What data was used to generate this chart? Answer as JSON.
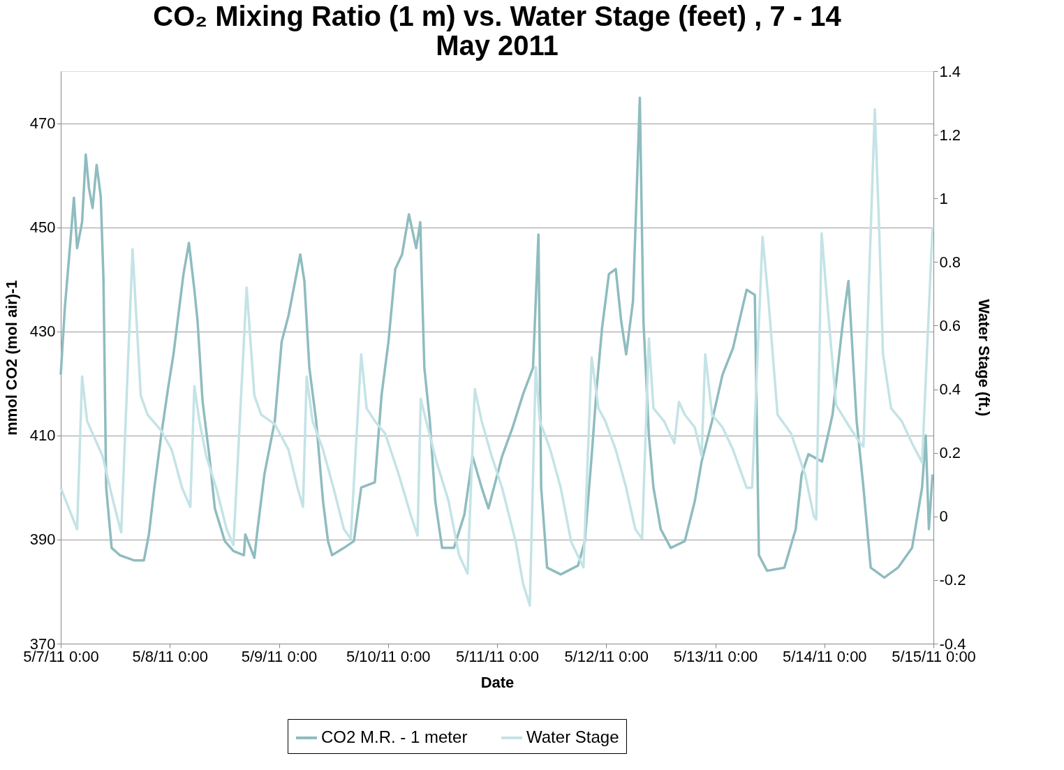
{
  "chart_data": {
    "type": "line",
    "title": "CO₂ Mixing Ratio (1 m) vs. Water Stage (feet) , 7 - 14 May 2011",
    "xlabel": "Date",
    "ylabel": "mmol CO2 (mol air)-1",
    "y2label": "Water Stage (ft.)",
    "xlim": [
      "2011-05-07T00:00",
      "2011-05-15T00:00"
    ],
    "xticks": [
      {
        "value": "2011-05-07T00:00",
        "label": "5/7/11 0:00"
      },
      {
        "value": "2011-05-08T00:00",
        "label": "5/8/11 0:00"
      },
      {
        "value": "2011-05-09T00:00",
        "label": "5/9/11 0:00"
      },
      {
        "value": "2011-05-10T00:00",
        "label": "5/10/11 0:00"
      },
      {
        "value": "2011-05-11T00:00",
        "label": "5/11/11 0:00"
      },
      {
        "value": "2011-05-12T00:00",
        "label": "5/12/11 0:00"
      },
      {
        "value": "2011-05-13T00:00",
        "label": "5/13/11 0:00"
      },
      {
        "value": "2011-05-14T00:00",
        "label": "5/14/11 0:00"
      },
      {
        "value": "2011-05-15T00:00",
        "label": "5/15/11 0:00"
      }
    ],
    "ylim": [
      370,
      480
    ],
    "yticks": [
      370,
      390,
      410,
      430,
      450,
      470
    ],
    "y2lim": [
      -0.4,
      1.4
    ],
    "y2ticks": [
      -0.4,
      -0.2,
      0,
      0.2,
      0.4,
      0.6,
      0.8,
      1,
      1.2,
      1.4
    ],
    "grid": "y",
    "legend": "bottom",
    "marker": "none",
    "line_style": "solid",
    "series": [
      {
        "name": "CO2 M.R. - 1 meter",
        "color": "#8fbcbf",
        "x": [
          "2011-05-07T00:00",
          "2011-05-07T00:54",
          "2011-05-07T02:06",
          "2011-05-07T02:54",
          "2011-05-07T03:36",
          "2011-05-07T04:42",
          "2011-05-07T05:30",
          "2011-05-07T06:12",
          "2011-05-07T07:00",
          "2011-05-07T07:54",
          "2011-05-07T08:48",
          "2011-05-07T09:24",
          "2011-05-07T10:00",
          "2011-05-07T11:12",
          "2011-05-07T13:00",
          "2011-05-07T16:06",
          "2011-05-07T18:18",
          "2011-05-07T19:24",
          "2011-05-07T20:36",
          "2011-05-07T22:06",
          "2011-05-07T23:36",
          "2011-05-08T00:48",
          "2011-05-08T03:00",
          "2011-05-08T04:12",
          "2011-05-08T05:24",
          "2011-05-08T06:06",
          "2011-05-08T07:12",
          "2011-05-08T08:42",
          "2011-05-08T09:54",
          "2011-05-08T12:06",
          "2011-05-08T14:00",
          "2011-05-08T16:18",
          "2011-05-08T16:36",
          "2011-05-08T18:36",
          "2011-05-08T19:18",
          "2011-05-08T20:48",
          "2011-05-08T23:06",
          "2011-05-09T00:36",
          "2011-05-09T02:06",
          "2011-05-09T04:42",
          "2011-05-09T05:36",
          "2011-05-09T06:42",
          "2011-05-09T08:12",
          "2011-05-09T09:42",
          "2011-05-09T10:48",
          "2011-05-09T11:42",
          "2011-05-09T14:18",
          "2011-05-09T16:30",
          "2011-05-09T18:06",
          "2011-05-09T21:06",
          "2011-05-09T22:36",
          "2011-05-10T00:06",
          "2011-05-10T01:36",
          "2011-05-10T03:06",
          "2011-05-10T04:36",
          "2011-05-10T06:12",
          "2011-05-10T07:06",
          "2011-05-10T07:24",
          "2011-05-10T08:00",
          "2011-05-10T09:12",
          "2011-05-10T10:24",
          "2011-05-10T11:54",
          "2011-05-10T14:30",
          "2011-05-10T16:48",
          "2011-05-10T18:36",
          "2011-05-10T20:36",
          "2011-05-10T22:06",
          "2011-05-10T23:36",
          "2011-05-11T01:06",
          "2011-05-11T03:24",
          "2011-05-11T05:42",
          "2011-05-11T07:54",
          "2011-05-11T09:06",
          "2011-05-11T09:42",
          "2011-05-11T11:00",
          "2011-05-11T14:00",
          "2011-05-11T17:48",
          "2011-05-11T19:18",
          "2011-05-11T20:48",
          "2011-05-11T21:54",
          "2011-05-11T23:06",
          "2011-05-12T00:36",
          "2011-05-12T02:06",
          "2011-05-12T03:18",
          "2011-05-12T04:24",
          "2011-05-12T05:54",
          "2011-05-12T07:24",
          "2011-05-12T08:12",
          "2011-05-12T09:24",
          "2011-05-12T10:24",
          "2011-05-12T12:00",
          "2011-05-12T14:12",
          "2011-05-12T17:18",
          "2011-05-12T19:30",
          "2011-05-12T21:00",
          "2011-05-12T23:18",
          "2011-05-13T01:36",
          "2011-05-13T03:54",
          "2011-05-13T06:54",
          "2011-05-13T08:42",
          "2011-05-13T09:36",
          "2011-05-13T11:24",
          "2011-05-13T15:12",
          "2011-05-13T17:42",
          "2011-05-13T19:00",
          "2011-05-13T20:30",
          "2011-05-13T23:30",
          "2011-05-14T01:48",
          "2011-05-14T04:06",
          "2011-05-14T05:18",
          "2011-05-14T07:06",
          "2011-05-14T08:36",
          "2011-05-14T10:12",
          "2011-05-14T13:12",
          "2011-05-14T16:12",
          "2011-05-14T19:18",
          "2011-05-14T21:30",
          "2011-05-14T22:18",
          "2011-05-14T23:00",
          "2011-05-14T23:48"
        ],
        "values": [
          421.7,
          434.5,
          447,
          455.7,
          446,
          451,
          464,
          457.6,
          453.7,
          462,
          456,
          440,
          400,
          388.4,
          387,
          386,
          386,
          391,
          400,
          410,
          419,
          425.6,
          441,
          447,
          438,
          432,
          416.6,
          406,
          396,
          389.7,
          387.8,
          387,
          391,
          386.5,
          392,
          402.5,
          412.8,
          428,
          433,
          444.8,
          439.7,
          423,
          412.8,
          397.4,
          389.7,
          387,
          388.4,
          389.7,
          400,
          401,
          417.9,
          428,
          442,
          444.8,
          452.5,
          446,
          451,
          441,
          423,
          412.8,
          397.4,
          388.4,
          388.4,
          394.8,
          406,
          400,
          396,
          401,
          406,
          411.5,
          417.9,
          423,
          448.6,
          400,
          384.6,
          383.3,
          385,
          389.7,
          406,
          419,
          430.7,
          441,
          442,
          432,
          425.6,
          435.8,
          474.9,
          432,
          410,
          400,
          392,
          388.4,
          389.7,
          397.4,
          405,
          412.8,
          421.7,
          426.8,
          438,
          437,
          387,
          384,
          384.6,
          392,
          402.5,
          406.4,
          405,
          414,
          432,
          439.7,
          412.8,
          400,
          384.6,
          382.7,
          384.6,
          388.4,
          400,
          410,
          392,
          402.5
        ]
      },
      {
        "name": "Water Stage",
        "color": "#c4e3e6",
        "axis": "y2",
        "x": [
          "2011-05-07T00:00",
          "2011-05-07T03:36",
          "2011-05-07T04:42",
          "2011-05-07T05:48",
          "2011-05-07T09:12",
          "2011-05-07T11:30",
          "2011-05-07T13:18",
          "2011-05-07T15:48",
          "2011-05-07T17:36",
          "2011-05-07T19:06",
          "2011-05-07T22:06",
          "2011-05-08T00:24",
          "2011-05-08T02:42",
          "2011-05-08T04:30",
          "2011-05-08T05:24",
          "2011-05-08T06:30",
          "2011-05-08T08:00",
          "2011-05-08T10:12",
          "2011-05-08T12:30",
          "2011-05-08T14:00",
          "2011-05-08T16:54",
          "2011-05-08T18:36",
          "2011-05-08T20:06",
          "2011-05-08T23:06",
          "2011-05-09T02:06",
          "2011-05-09T04:06",
          "2011-05-09T05:18",
          "2011-05-09T06:06",
          "2011-05-09T07:24",
          "2011-05-09T09:42",
          "2011-05-09T12:00",
          "2011-05-09T14:18",
          "2011-05-09T15:48",
          "2011-05-09T18:06",
          "2011-05-09T19:18",
          "2011-05-09T21:06",
          "2011-05-09T23:24",
          "2011-05-10T02:24",
          "2011-05-10T05:06",
          "2011-05-10T06:30",
          "2011-05-10T07:12",
          "2011-05-10T08:24",
          "2011-05-10T10:42",
          "2011-05-10T13:18",
          "2011-05-10T15:36",
          "2011-05-10T17:30",
          "2011-05-10T19:06",
          "2011-05-10T20:36",
          "2011-05-10T22:48",
          "2011-05-11T01:06",
          "2011-05-11T04:06",
          "2011-05-11T05:42",
          "2011-05-11T07:12",
          "2011-05-11T08:30",
          "2011-05-11T09:24",
          "2011-05-11T11:42",
          "2011-05-11T14:00",
          "2011-05-11T16:18",
          "2011-05-11T19:00",
          "2011-05-11T20:48",
          "2011-05-11T22:18",
          "2011-05-11T23:48",
          "2011-05-12T02:06",
          "2011-05-12T04:24",
          "2011-05-12T06:24",
          "2011-05-12T07:54",
          "2011-05-12T09:24",
          "2011-05-12T10:24",
          "2011-05-12T12:42",
          "2011-05-12T15:00",
          "2011-05-12T16:00",
          "2011-05-12T17:18",
          "2011-05-12T19:30",
          "2011-05-12T21:00",
          "2011-05-12T21:48",
          "2011-05-12T23:18",
          "2011-05-13T01:36",
          "2011-05-13T03:54",
          "2011-05-13T06:54",
          "2011-05-13T08:06",
          "2011-05-13T10:24",
          "2011-05-13T11:42",
          "2011-05-13T13:42",
          "2011-05-13T16:42",
          "2011-05-13T19:48",
          "2011-05-13T21:42",
          "2011-05-13T22:12",
          "2011-05-13T23:24",
          "2011-05-14T00:36",
          "2011-05-14T02:36",
          "2011-05-14T05:36",
          "2011-05-14T07:54",
          "2011-05-14T08:36",
          "2011-05-14T11:06",
          "2011-05-14T12:00",
          "2011-05-14T12:54",
          "2011-05-14T14:42",
          "2011-05-14T17:00",
          "2011-05-14T19:18",
          "2011-05-14T21:30",
          "2011-05-14T23:48"
        ],
        "values": [
          0.09,
          -0.04,
          0.44,
          0.3,
          0.19,
          0.05,
          -0.05,
          0.84,
          0.38,
          0.32,
          0.27,
          0.21,
          0.09,
          0.03,
          0.41,
          0.3,
          0.19,
          0.09,
          -0.04,
          -0.09,
          0.72,
          0.38,
          0.32,
          0.29,
          0.21,
          0.09,
          0.03,
          0.44,
          0.3,
          0.21,
          0.09,
          -0.04,
          -0.07,
          0.51,
          0.34,
          0.3,
          0.26,
          0.13,
          0.0,
          -0.06,
          0.37,
          0.3,
          0.17,
          0.05,
          -0.12,
          -0.18,
          0.4,
          0.3,
          0.19,
          0.09,
          -0.08,
          -0.21,
          -0.28,
          0.47,
          0.3,
          0.21,
          0.09,
          -0.08,
          -0.16,
          0.5,
          0.34,
          0.3,
          0.21,
          0.09,
          -0.04,
          -0.07,
          0.56,
          0.34,
          0.3,
          0.23,
          0.36,
          0.32,
          0.28,
          0.19,
          0.51,
          0.32,
          0.28,
          0.21,
          0.09,
          0.09,
          0.88,
          0.68,
          0.32,
          0.26,
          0.13,
          0.0,
          -0.01,
          0.89,
          0.68,
          0.35,
          0.28,
          0.23,
          0.22,
          1.28,
          0.93,
          0.51,
          0.34,
          0.3,
          0.23,
          0.17,
          0.91
        ]
      }
    ]
  }
}
